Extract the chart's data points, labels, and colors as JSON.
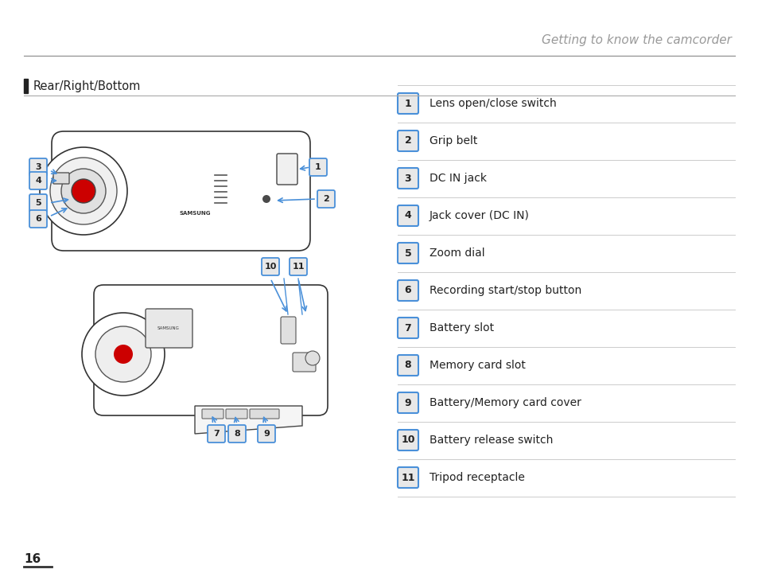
{
  "title": "Getting to know the camcorder",
  "section": "Rear/Right/Bottom",
  "page_number": "16",
  "items": [
    {
      "num": "1",
      "desc": "Lens open/close switch"
    },
    {
      "num": "2",
      "desc": "Grip belt"
    },
    {
      "num": "3",
      "desc": "DC IN jack"
    },
    {
      "num": "4",
      "desc": "Jack cover (DC IN)"
    },
    {
      "num": "5",
      "desc": "Zoom dial"
    },
    {
      "num": "6",
      "desc": "Recording start/stop button"
    },
    {
      "num": "7",
      "desc": "Battery slot"
    },
    {
      "num": "8",
      "desc": "Memory card slot"
    },
    {
      "num": "9",
      "desc": "Battery/Memory card cover"
    },
    {
      "num": "10",
      "desc": "Battery release switch"
    },
    {
      "num": "11",
      "desc": "Tripod receptacle"
    }
  ],
  "title_color": "#999999",
  "section_bar_color": "#222222",
  "badge_border_color": "#4a90d9",
  "badge_bg_color": "#e8e8e8",
  "line_color": "#cccccc",
  "arrow_color": "#4a90d9",
  "text_color": "#222222",
  "page_num_color": "#222222",
  "top_line_color": "#888888",
  "sub_line_color": "#aaaaaa"
}
